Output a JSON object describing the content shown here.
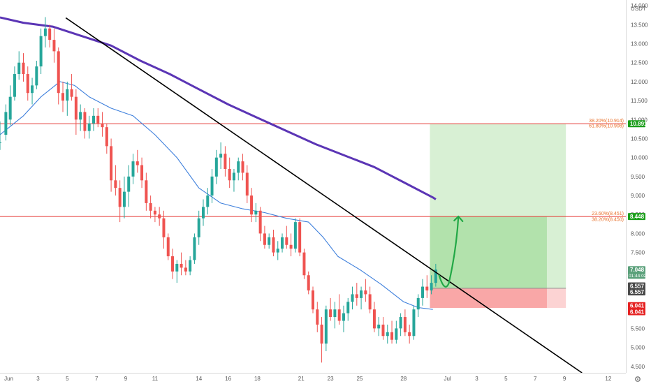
{
  "chart_data": {
    "type": "candlestick",
    "currency": "USDT",
    "y_ticks": [
      "14.000",
      "13.500",
      "13.000",
      "12.500",
      "12.000",
      "11.500",
      "11.000",
      "10.500",
      "10.000",
      "9.500",
      "9.000",
      "8.500",
      "8.000",
      "7.500",
      "7.000",
      "6.500",
      "6.000",
      "5.500",
      "5.000",
      "4.500"
    ],
    "y_tick_values": [
      14,
      13.5,
      13,
      12.5,
      12,
      11.5,
      11,
      10.5,
      10,
      9.5,
      9,
      8.5,
      8,
      7.5,
      7,
      6.5,
      6,
      5.5,
      5,
      4.5
    ],
    "ylim": [
      4.33,
      14.15
    ],
    "x_ticks": [
      "Jun",
      "3",
      "5",
      "7",
      "9",
      "11",
      "14",
      "16",
      "18",
      "21",
      "23",
      "25",
      "28",
      "Jul",
      "3",
      "5",
      "7",
      "9",
      "12"
    ],
    "x_tick_days": [
      1,
      3,
      5,
      7,
      9,
      11,
      14,
      16,
      18,
      21,
      23,
      25,
      28,
      31,
      33,
      35,
      37,
      39,
      42
    ],
    "xlim": [
      0.4,
      43.2
    ],
    "horizontal_levels": [
      {
        "price": 10.891,
        "color": "#e53935"
      },
      {
        "price": 8.448,
        "color": "#e53935"
      }
    ],
    "fib_labels": [
      {
        "text": "38.20%(10.914)",
        "price": 10.98
      },
      {
        "text": "61.80%(10.908)",
        "price": 10.84
      },
      {
        "text": "23.60%(8.451)",
        "price": 8.53
      },
      {
        "text": "38.20%(8.450)",
        "price": 8.38
      }
    ],
    "price_tags": [
      {
        "text": "10.891",
        "price": 10.891,
        "color": "#1b9e1b"
      },
      {
        "text": "8.448",
        "price": 8.448,
        "color": "#1b9e1b"
      },
      {
        "text": "7.048",
        "sub": "01:44:02",
        "price": 7.048,
        "color": "#5aa07a"
      },
      {
        "text": "6.557",
        "price": 6.62,
        "color": "#4a4a4a"
      },
      {
        "text": "6.557",
        "price": 6.46,
        "color": "#4a4a4a"
      },
      {
        "text": "6.041",
        "price": 6.1,
        "color": "#e52222"
      },
      {
        "text": "6.041",
        "price": 5.94,
        "color": "#e52222"
      }
    ],
    "trade_setup": {
      "entry": 6.557,
      "stop": 6.041,
      "target": 10.891,
      "target2": 8.448,
      "start_day": 29.8,
      "end_day": 39.1,
      "inner_end_day": 37.8
    },
    "trendline": {
      "points": [
        [
          4.9,
          13.68
        ],
        [
          40.2,
          4.33
        ]
      ],
      "color": "#000000"
    },
    "projection_arrow": {
      "from": [
        30.9,
        6.65
      ],
      "to": [
        31.75,
        8.45
      ],
      "color": "#22a846"
    },
    "ma_slow": {
      "color": "#5b35b5",
      "points": [
        [
          0.4,
          13.69
        ],
        [
          2,
          13.55
        ],
        [
          4,
          13.45
        ],
        [
          6,
          13.2
        ],
        [
          8,
          12.95
        ],
        [
          10,
          12.55
        ],
        [
          12,
          12.2
        ],
        [
          14,
          11.8
        ],
        [
          16,
          11.4
        ],
        [
          18,
          11.05
        ],
        [
          20,
          10.7
        ],
        [
          22,
          10.35
        ],
        [
          24,
          10.05
        ],
        [
          26,
          9.75
        ],
        [
          28,
          9.35
        ],
        [
          30,
          8.95
        ],
        [
          30.2,
          8.9
        ]
      ]
    },
    "ma_fast": {
      "color": "#3d7fdc",
      "points": [
        [
          0.4,
          10.6
        ],
        [
          2,
          11.1
        ],
        [
          3.2,
          11.6
        ],
        [
          4.5,
          12.0
        ],
        [
          5.5,
          11.9
        ],
        [
          6.5,
          11.6
        ],
        [
          8,
          11.3
        ],
        [
          9.5,
          11.1
        ],
        [
          11,
          10.6
        ],
        [
          12.5,
          10.0
        ],
        [
          14,
          9.2
        ],
        [
          15.5,
          8.8
        ],
        [
          17,
          8.65
        ],
        [
          18.5,
          8.55
        ],
        [
          20,
          8.4
        ],
        [
          21.5,
          8.3
        ],
        [
          22.5,
          7.9
        ],
        [
          23.5,
          7.4
        ],
        [
          25,
          7.05
        ],
        [
          26.5,
          6.65
        ],
        [
          28,
          6.2
        ],
        [
          29,
          6.05
        ],
        [
          30,
          6.0
        ]
      ]
    },
    "candles_ohlc": [
      [
        0.4,
        10.4,
        10.95,
        10.2,
        10.4
      ],
      [
        0.8,
        10.6,
        11.4,
        10.45,
        11.2
      ],
      [
        1.1,
        11.0,
        11.9,
        10.85,
        11.6
      ],
      [
        1.4,
        11.6,
        12.4,
        11.5,
        12.2
      ],
      [
        1.7,
        12.2,
        12.8,
        12.05,
        12.5
      ],
      [
        2.0,
        12.5,
        12.75,
        12.0,
        12.2
      ],
      [
        2.3,
        12.2,
        12.4,
        11.5,
        11.7
      ],
      [
        2.6,
        11.7,
        12.1,
        11.4,
        11.9
      ],
      [
        2.9,
        11.9,
        12.55,
        11.8,
        12.4
      ],
      [
        3.2,
        12.4,
        13.4,
        12.2,
        13.2
      ],
      [
        3.5,
        13.2,
        13.7,
        12.9,
        13.4
      ],
      [
        3.8,
        13.4,
        13.5,
        12.9,
        13.1
      ],
      [
        4.1,
        13.1,
        13.4,
        12.5,
        12.8
      ],
      [
        4.4,
        12.8,
        12.9,
        11.4,
        11.7
      ],
      [
        4.7,
        11.7,
        12.0,
        11.2,
        11.5
      ],
      [
        5.0,
        11.5,
        12.0,
        11.1,
        11.8
      ],
      [
        5.3,
        11.8,
        12.2,
        11.5,
        11.6
      ],
      [
        5.6,
        11.6,
        11.8,
        10.6,
        11.0
      ],
      [
        5.9,
        11.0,
        11.4,
        10.7,
        11.2
      ],
      [
        6.2,
        11.2,
        11.3,
        10.5,
        10.7
      ],
      [
        6.5,
        10.7,
        11.1,
        10.5,
        10.9
      ],
      [
        6.8,
        10.9,
        11.3,
        10.7,
        11.1
      ],
      [
        7.1,
        11.1,
        11.3,
        10.8,
        10.9
      ],
      [
        7.4,
        10.9,
        11.2,
        10.55,
        10.8
      ],
      [
        7.7,
        10.8,
        10.9,
        10.1,
        10.3
      ],
      [
        8.0,
        10.3,
        10.5,
        9.1,
        9.4
      ],
      [
        8.3,
        9.4,
        9.8,
        9.0,
        9.2
      ],
      [
        8.6,
        9.2,
        9.4,
        8.3,
        8.7
      ],
      [
        8.9,
        8.7,
        9.5,
        8.4,
        9.1
      ],
      [
        9.2,
        9.1,
        9.8,
        8.7,
        9.5
      ],
      [
        9.5,
        9.5,
        10.1,
        9.3,
        9.9
      ],
      [
        9.8,
        9.9,
        10.2,
        9.6,
        9.8
      ],
      [
        10.1,
        9.8,
        10.0,
        9.2,
        9.4
      ],
      [
        10.4,
        9.4,
        9.6,
        8.6,
        8.8
      ],
      [
        10.7,
        8.8,
        9.0,
        8.4,
        8.6
      ],
      [
        11.0,
        8.6,
        8.7,
        8.3,
        8.5
      ],
      [
        11.3,
        8.5,
        8.7,
        8.2,
        8.4
      ],
      [
        11.6,
        8.4,
        8.6,
        7.6,
        7.9
      ],
      [
        11.9,
        7.9,
        8.0,
        7.3,
        7.4
      ],
      [
        12.2,
        7.4,
        7.6,
        6.8,
        7.0
      ],
      [
        12.5,
        7.0,
        7.3,
        6.7,
        7.2
      ],
      [
        12.8,
        7.2,
        7.5,
        6.9,
        7.1
      ],
      [
        13.1,
        7.1,
        7.3,
        6.9,
        7.0
      ],
      [
        13.4,
        7.0,
        7.4,
        6.9,
        7.3
      ],
      [
        13.7,
        7.3,
        8.0,
        7.2,
        7.9
      ],
      [
        14.0,
        7.9,
        8.6,
        7.7,
        8.4
      ],
      [
        14.3,
        8.4,
        8.9,
        8.2,
        8.7
      ],
      [
        14.6,
        8.7,
        9.2,
        8.5,
        9.0
      ],
      [
        14.9,
        9.0,
        9.7,
        8.8,
        9.5
      ],
      [
        15.2,
        9.5,
        10.2,
        9.3,
        10.0
      ],
      [
        15.5,
        10.0,
        10.4,
        9.7,
        10.1
      ],
      [
        15.8,
        10.1,
        10.3,
        9.5,
        9.7
      ],
      [
        16.1,
        9.7,
        10.0,
        9.2,
        9.4
      ],
      [
        16.4,
        9.4,
        9.7,
        9.1,
        9.6
      ],
      [
        16.7,
        9.6,
        10.0,
        9.4,
        9.9
      ],
      [
        17.0,
        9.9,
        10.1,
        9.4,
        9.6
      ],
      [
        17.3,
        9.6,
        9.8,
        8.8,
        9.0
      ],
      [
        17.6,
        9.0,
        9.2,
        8.3,
        8.5
      ],
      [
        17.9,
        8.5,
        8.8,
        8.3,
        8.6
      ],
      [
        18.2,
        8.6,
        8.7,
        7.8,
        8.0
      ],
      [
        18.5,
        8.0,
        8.2,
        7.6,
        7.7
      ],
      [
        18.8,
        7.7,
        8.0,
        7.6,
        7.9
      ],
      [
        19.1,
        7.9,
        8.1,
        7.4,
        7.5
      ],
      [
        19.4,
        7.5,
        7.8,
        7.3,
        7.6
      ],
      [
        19.7,
        7.6,
        8.0,
        7.5,
        7.9
      ],
      [
        20.0,
        7.9,
        8.2,
        7.6,
        7.7
      ],
      [
        20.3,
        7.7,
        8.0,
        7.4,
        7.6
      ],
      [
        20.6,
        7.6,
        8.4,
        7.5,
        8.3
      ],
      [
        20.9,
        8.3,
        8.4,
        7.4,
        7.5
      ],
      [
        21.2,
        7.5,
        7.6,
        6.8,
        6.9
      ],
      [
        21.5,
        6.9,
        7.0,
        6.4,
        6.5
      ],
      [
        21.8,
        6.5,
        6.6,
        5.9,
        6.0
      ],
      [
        22.1,
        6.0,
        6.2,
        5.4,
        5.6
      ],
      [
        22.4,
        5.6,
        5.8,
        4.6,
        5.1
      ],
      [
        22.7,
        5.1,
        6.1,
        4.9,
        6.0
      ],
      [
        23.0,
        6.0,
        6.3,
        5.7,
        5.8
      ],
      [
        23.3,
        5.8,
        6.2,
        5.5,
        6.0
      ],
      [
        23.6,
        6.0,
        6.4,
        5.6,
        5.7
      ],
      [
        23.9,
        5.7,
        6.1,
        5.4,
        5.9
      ],
      [
        24.2,
        5.9,
        6.3,
        5.7,
        6.2
      ],
      [
        24.5,
        6.2,
        6.6,
        6.0,
        6.4
      ],
      [
        24.8,
        6.4,
        6.7,
        6.1,
        6.3
      ],
      [
        25.1,
        6.3,
        6.6,
        6.0,
        6.5
      ],
      [
        25.4,
        6.5,
        6.8,
        6.2,
        6.4
      ],
      [
        25.7,
        6.4,
        6.6,
        5.9,
        6.0
      ],
      [
        26.0,
        6.0,
        6.2,
        5.4,
        5.5
      ],
      [
        26.3,
        5.5,
        5.8,
        5.3,
        5.6
      ],
      [
        26.6,
        5.6,
        5.8,
        5.2,
        5.3
      ],
      [
        26.9,
        5.3,
        5.6,
        5.1,
        5.4
      ],
      [
        27.2,
        5.4,
        5.7,
        5.1,
        5.2
      ],
      [
        27.5,
        5.2,
        5.7,
        5.1,
        5.5
      ],
      [
        27.8,
        5.5,
        5.9,
        5.3,
        5.8
      ],
      [
        28.1,
        5.8,
        6.0,
        5.3,
        5.4
      ],
      [
        28.4,
        5.4,
        5.6,
        5.1,
        5.3
      ],
      [
        28.7,
        5.3,
        6.1,
        5.2,
        6.0
      ],
      [
        29.0,
        6.0,
        6.4,
        5.8,
        6.3
      ],
      [
        29.3,
        6.3,
        6.8,
        6.1,
        6.6
      ],
      [
        29.6,
        6.6,
        6.9,
        6.3,
        6.5
      ],
      [
        29.9,
        6.5,
        6.9,
        6.4,
        6.7
      ],
      [
        30.2,
        6.7,
        7.2,
        6.6,
        7.05
      ]
    ]
  }
}
